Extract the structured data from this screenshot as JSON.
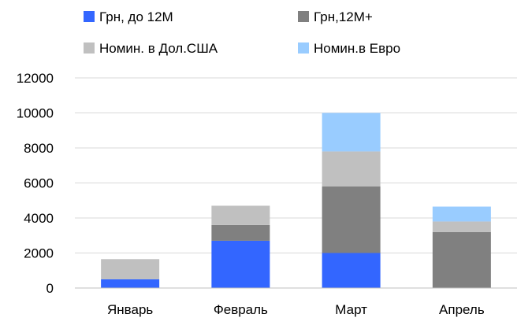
{
  "chart_data": {
    "type": "bar",
    "stacked": true,
    "categories": [
      "Январь",
      "Февраль",
      "Март",
      "Апрель"
    ],
    "series": [
      {
        "name": "Грн, до 12М",
        "color": "#3366FF",
        "values": [
          500,
          2700,
          2000,
          0
        ]
      },
      {
        "name": "Грн,12М+",
        "color": "#808080",
        "values": [
          0,
          900,
          3800,
          3200
        ]
      },
      {
        "name": "Номин. в Дол.США",
        "color": "#C0C0C0",
        "values": [
          1150,
          1100,
          2000,
          600
        ]
      },
      {
        "name": "Номин.в Евро",
        "color": "#99CCFF",
        "values": [
          0,
          0,
          2200,
          850
        ]
      }
    ],
    "yticks": [
      "0",
      "2000",
      "4000",
      "6000",
      "8000",
      "10000",
      "12000"
    ],
    "ylim": [
      0,
      12000
    ],
    "grid": true,
    "legend_position": "top"
  }
}
